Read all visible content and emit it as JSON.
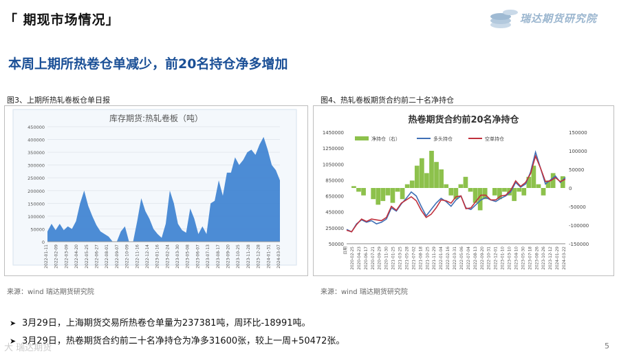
{
  "header": {
    "title": "「 期现市场情况」",
    "logo_text": "瑞达期货研究院"
  },
  "headline": "本周上期所热卷仓单减少，前20名持仓净多增加",
  "figures": [
    {
      "caption": "图3、上期所热轧卷板仓单日报",
      "source": "来源：wind   瑞达期货研究院"
    },
    {
      "caption": "图4、热轧卷板期货合约前二十名净持仓",
      "source": "来源：wind   瑞达期货研究院"
    }
  ],
  "bullets": [
    "3月29日，上海期货交易所热卷仓单量为237381吨，周环比-18991吨。",
    "3月29日，热卷期货合约前二十名净持仓为净多31600张，较上一周+50472张。"
  ],
  "page_number": "5",
  "watermark": "大 瑞达期货",
  "colors": {
    "headline": "#1a4f96",
    "area_fill": "#3a7fd0",
    "net_fill": "#8dc14c",
    "long_line": "#3f6fb5",
    "short_line": "#c0303c"
  },
  "chart_data": [
    {
      "type": "area",
      "title": "库存期货:热轧卷板（吨）",
      "ylim": [
        0,
        450000
      ],
      "yticks": [
        "450000",
        "400000",
        "350000",
        "300000",
        "250000",
        "200000",
        "150000",
        "100000",
        "50000",
        "0"
      ],
      "xticks": [
        "2022-01-11",
        "2022-02-09",
        "2022-03-09",
        "2022-04-20",
        "2022-05-25",
        "2022-06-27",
        "2022-08-01",
        "2022-09-07",
        "2022-10-09",
        "2022-11-16",
        "2022-12-14",
        "2023-01-16",
        "2023-02-24",
        "2023-03-30",
        "2023-05-08",
        "2023-06-07",
        "2023-07-13",
        "2023-08-17",
        "2023-09-20",
        "2023-10-25",
        "2023-11-28",
        "2023-12-28",
        "2024-01-31",
        "2024-03-07"
      ],
      "values": [
        40000,
        70000,
        45000,
        70000,
        45000,
        60000,
        50000,
        80000,
        150000,
        200000,
        140000,
        100000,
        65000,
        40000,
        30000,
        20000,
        0,
        0,
        40000,
        60000,
        0,
        0,
        80000,
        170000,
        120000,
        90000,
        50000,
        30000,
        15000,
        70000,
        200000,
        150000,
        70000,
        45000,
        35000,
        130000,
        90000,
        30000,
        60000,
        30000,
        150000,
        160000,
        240000,
        180000,
        270000,
        270000,
        330000,
        300000,
        320000,
        350000,
        360000,
        340000,
        380000,
        410000,
        360000,
        300000,
        280000,
        240000
      ]
    },
    {
      "type": "line",
      "title": "热卷期货合约前20名净持仓",
      "legend": [
        "净持仓（右）",
        "多头持仓",
        "空单持仓"
      ],
      "ylim_left": [
        50000,
        1450000
      ],
      "ylim_right": [
        -150000,
        150000
      ],
      "yticks_left": [
        "1450000",
        "1250000",
        "1050000",
        "850000",
        "650000",
        "450000",
        "250000",
        "50000"
      ],
      "yticks_right": [
        "150000",
        "100000",
        "50000",
        "0",
        "-50000",
        "-100000",
        "-150000"
      ],
      "xticks": [
        "日期",
        "2020-02-25",
        "2020-04-23",
        "2020-06-17",
        "2020-07-21",
        "2020-09-29",
        "2020-11-30",
        "2021-01-25",
        "2021-03-25",
        "2021-05-28",
        "2021-07-02",
        "2021-08-18",
        "2021-10-25",
        "2021-11-29",
        "2022-01-04",
        "2022-02-16",
        "2022-03-31",
        "2022-05-06",
        "2022-07-04",
        "2022-08-13",
        "2022-09-20",
        "2022-10-31",
        "2022-12-01",
        "2023-01-10",
        "2023-03-10",
        "2023-04-10",
        "2023-05-30",
        "2023-07-18",
        "2023-08-26",
        "2023-10-26",
        "2023-12-12",
        "2024-01-29",
        "2024-03-22"
      ],
      "net_position": [
        0,
        5000,
        -10000,
        -20000,
        0,
        -30000,
        -45000,
        -35000,
        -20000,
        -40000,
        -10000,
        -30000,
        10000,
        20000,
        60000,
        80000,
        40000,
        100000,
        70000,
        50000,
        10000,
        -20000,
        -30000,
        10000,
        30000,
        -10000,
        -40000,
        -60000,
        -30000,
        0,
        -20000,
        -30000,
        -10000,
        -20000,
        -35000,
        -10000,
        -20000,
        30000,
        60000,
        10000,
        -20000,
        20000,
        40000,
        0,
        31600
      ],
      "long_position": [
        230000,
        200000,
        300000,
        350000,
        320000,
        340000,
        300000,
        320000,
        360000,
        500000,
        460000,
        550000,
        620000,
        700000,
        650000,
        520000,
        400000,
        480000,
        560000,
        620000,
        580000,
        520000,
        600000,
        650000,
        500000,
        480000,
        540000,
        600000,
        630000,
        600000,
        580000,
        620000,
        650000,
        700000,
        820000,
        760000,
        800000,
        950000,
        1200000,
        1000000,
        800000,
        850000,
        900000,
        820000,
        880000
      ],
      "short_position": [
        220000,
        200000,
        290000,
        360000,
        330000,
        360000,
        350000,
        340000,
        380000,
        520000,
        470000,
        560000,
        600000,
        640000,
        590000,
        470000,
        380000,
        420000,
        500000,
        600000,
        590000,
        560000,
        640000,
        650000,
        490000,
        500000,
        580000,
        660000,
        660000,
        600000,
        600000,
        650000,
        660000,
        720000,
        840000,
        770000,
        820000,
        930000,
        1150000,
        1000000,
        830000,
        840000,
        880000,
        830000,
        860000
      ]
    }
  ]
}
